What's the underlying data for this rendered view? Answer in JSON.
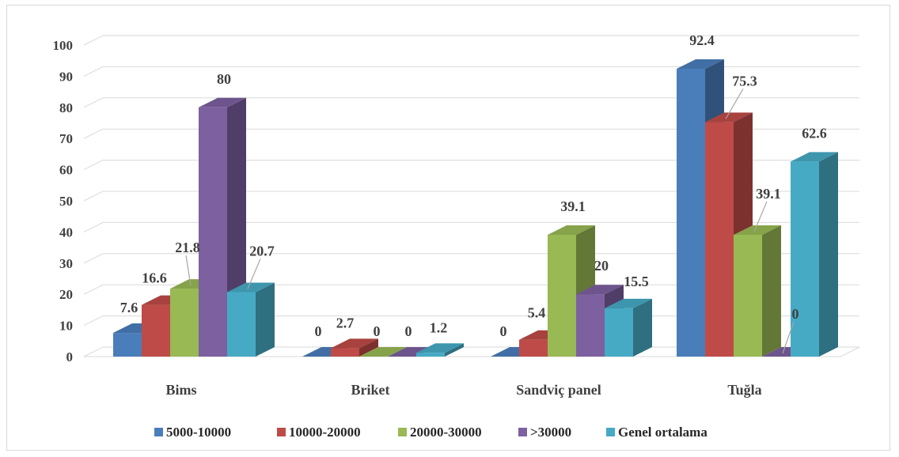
{
  "chart_data": {
    "type": "bar",
    "categories": [
      "Bims",
      "Briket",
      "Sandviç panel",
      "Tuğla"
    ],
    "series": [
      {
        "name": "5000-10000",
        "values": [
          7.6,
          0,
          0,
          92.4
        ],
        "color": "#4a7ebb"
      },
      {
        "name": "10000-20000",
        "values": [
          16.6,
          2.7,
          5.4,
          75.3
        ],
        "color": "#be4b48"
      },
      {
        "name": "20000-30000",
        "values": [
          21.8,
          0,
          39.1,
          39.1
        ],
        "color": "#98b954"
      },
      {
        "name": ">30000",
        "values": [
          80,
          0,
          20,
          0
        ],
        "color": "#7d60a0"
      },
      {
        "name": "Genel ortalama",
        "values": [
          20.7,
          1.2,
          15.5,
          62.6
        ],
        "color": "#46aac5"
      }
    ],
    "ylim": [
      0,
      100
    ],
    "yticks": [
      0,
      10,
      20,
      30,
      40,
      50,
      60,
      70,
      80,
      90,
      100
    ],
    "grid": true,
    "legend_position": "bottom",
    "three_d": true
  }
}
